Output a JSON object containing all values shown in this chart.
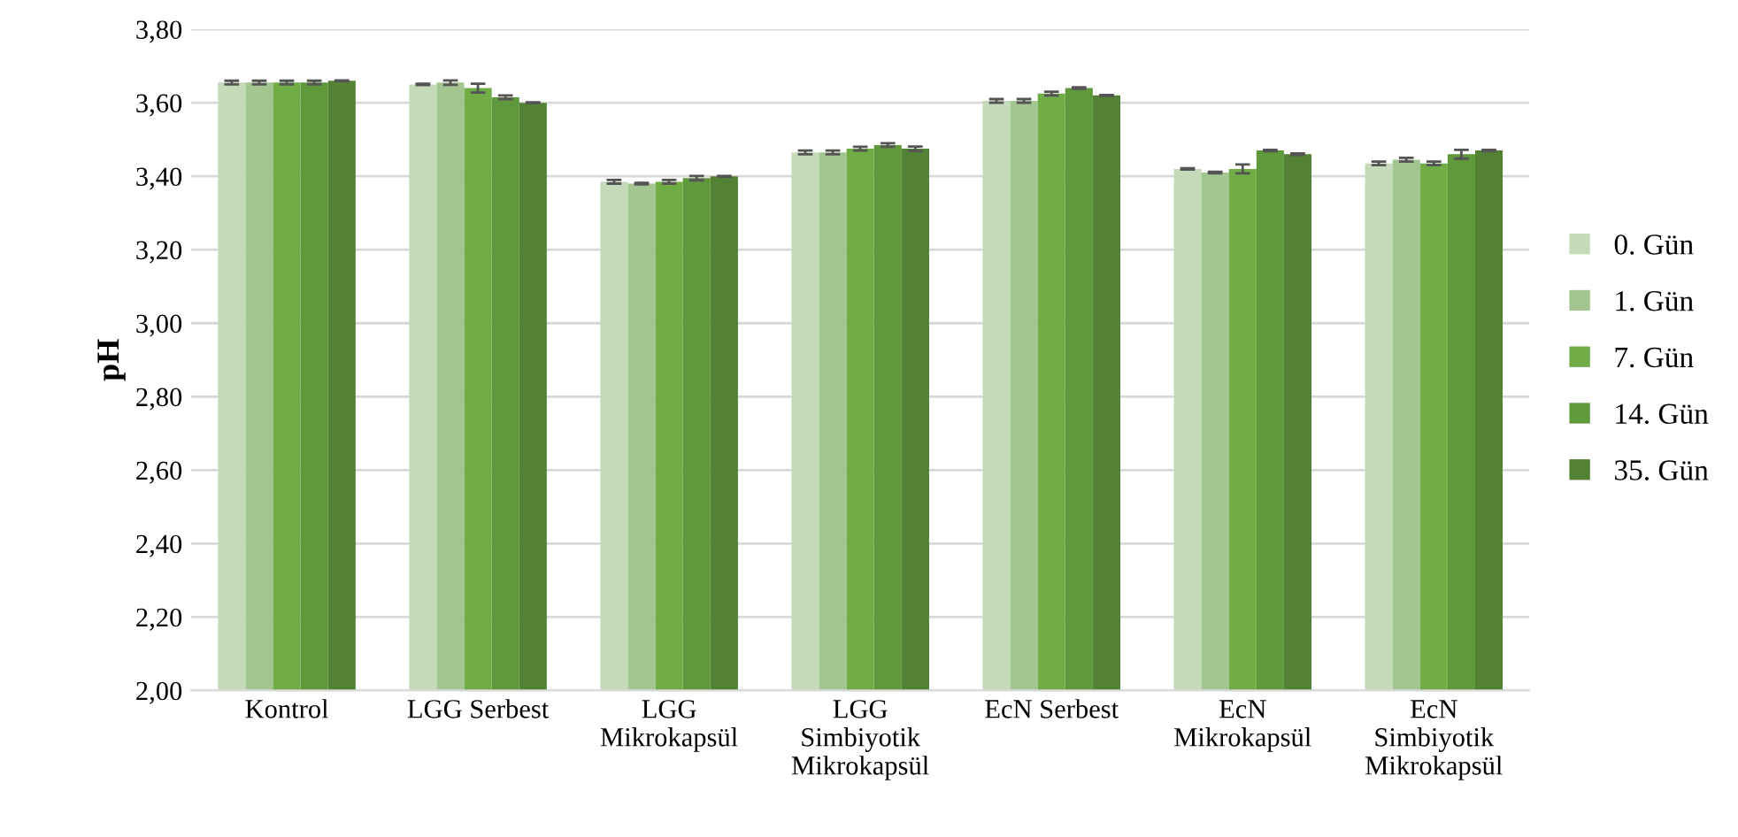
{
  "chart_data": {
    "type": "bar",
    "ylabel": "pH",
    "categories": [
      "Kontrol",
      "LGG Serbest",
      "LGG\nMikrokapsül",
      "LGG\nSimbiyotik\nMikrokapsül",
      "EcN Serbest",
      "EcN\nMikrokapsül",
      "EcN\nSimbiyotik\nMikrokapsül"
    ],
    "series": [
      {
        "name": "0. Gün",
        "color": "#c5dab9",
        "values": [
          3.655,
          3.65,
          3.385,
          3.465,
          3.605,
          3.42,
          3.435
        ],
        "errors": [
          0.005,
          0.002,
          0.005,
          0.005,
          0.005,
          0.002,
          0.005
        ]
      },
      {
        "name": "1. Gün",
        "color": "#a3c58f",
        "values": [
          3.655,
          3.655,
          3.38,
          3.465,
          3.605,
          3.41,
          3.445
        ],
        "errors": [
          0.005,
          0.006,
          0.002,
          0.005,
          0.005,
          0.002,
          0.005
        ]
      },
      {
        "name": "7. Gün",
        "color": "#70ad47",
        "values": [
          3.655,
          3.64,
          3.385,
          3.475,
          3.625,
          3.42,
          3.435
        ],
        "errors": [
          0.005,
          0.012,
          0.005,
          0.005,
          0.005,
          0.012,
          0.005
        ]
      },
      {
        "name": "14. Gün",
        "color": "#5f993c",
        "values": [
          3.655,
          3.615,
          3.395,
          3.485,
          3.64,
          3.47,
          3.46
        ],
        "errors": [
          0.005,
          0.005,
          0.006,
          0.005,
          0.002,
          0.002,
          0.012
        ]
      },
      {
        "name": "35. Gün",
        "color": "#548235",
        "values": [
          3.66,
          3.6,
          3.4,
          3.475,
          3.62,
          3.46,
          3.47
        ],
        "errors": [
          0.001,
          0.001,
          0.001,
          0.006,
          0.001,
          0.002,
          0.002
        ]
      }
    ],
    "ylim": [
      2.0,
      3.8
    ],
    "yticks": [
      {
        "value": 2.0,
        "label": "2,00"
      },
      {
        "value": 2.2,
        "label": "2,20"
      },
      {
        "value": 2.4,
        "label": "2,40"
      },
      {
        "value": 2.6,
        "label": "2,60"
      },
      {
        "value": 2.8,
        "label": "2,80"
      },
      {
        "value": 3.0,
        "label": "3,00"
      },
      {
        "value": 3.2,
        "label": "3,20"
      },
      {
        "value": 3.4,
        "label": "3,40"
      },
      {
        "value": 3.6,
        "label": "3,60"
      },
      {
        "value": 3.8,
        "label": "3,80"
      }
    ],
    "grid": "y",
    "legend": "right"
  }
}
